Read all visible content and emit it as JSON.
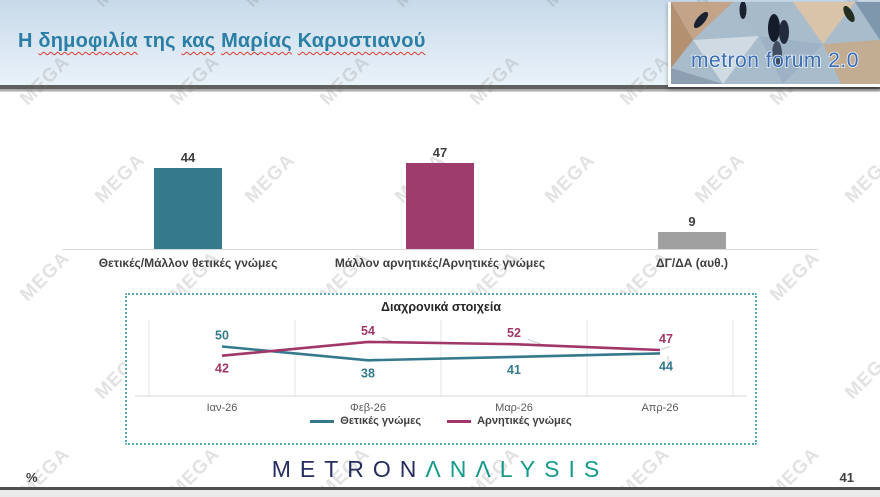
{
  "header": {
    "title_parts": [
      {
        "t": "Η ",
        "u": false
      },
      {
        "t": "δημοφιλία",
        "u": true
      },
      {
        "t": " της ",
        "u": false
      },
      {
        "t": "κας",
        "u": true
      },
      {
        "t": " ",
        "u": false
      },
      {
        "t": "Μαρίας",
        "u": true
      },
      {
        "t": " ",
        "u": false
      },
      {
        "t": "Καρυστιανού",
        "u": true
      }
    ],
    "logo_text": "metron forum 2.0"
  },
  "watermark": {
    "text": "MEGA"
  },
  "chart_data": [
    {
      "type": "bar",
      "title": "Η δημοφιλία της κας Μαρίας Καρυστιανού",
      "categories": [
        "Θετικές/Μάλλον θετικές γνώμες",
        "Μάλλον αρνητικές/Αρνητικές γνώμες",
        "ΔΓ/ΔΑ (αυθ.)"
      ],
      "values": [
        44,
        47,
        9
      ],
      "colors": [
        "#35798d",
        "#9e3c6c",
        "#a0a0a0"
      ],
      "unit": "%",
      "ylim": [
        0,
        50
      ],
      "grid": "off",
      "data_labels": "above"
    },
    {
      "type": "line",
      "title": "Διαχρονικά στοιχεία",
      "x": [
        "Ιαν-26",
        "Φεβ-26",
        "Μαρ-26",
        "Απρ-26"
      ],
      "series": [
        {
          "name": "Θετικές γνώμες",
          "color": "#35798d",
          "values": [
            50,
            38,
            41,
            44
          ]
        },
        {
          "name": "Αρνητικές γνώμες",
          "color": "#a03768",
          "values": [
            42,
            54,
            52,
            47
          ]
        }
      ],
      "legend_position": "bottom",
      "grid": "vertical",
      "data_labels": "on"
    }
  ],
  "footer": {
    "percent_label": "%",
    "logo_metron": "METRON",
    "logo_analysis": "ΛNΛLYSIS",
    "page_number": "41"
  }
}
